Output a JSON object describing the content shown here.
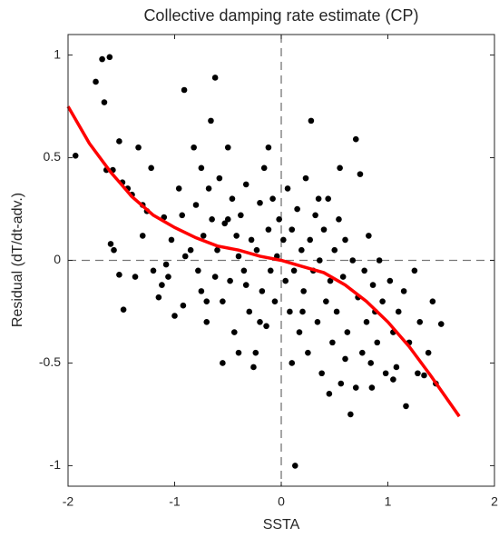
{
  "chart_data": {
    "type": "scatter",
    "title": "Collective damping rate estimate (CP)",
    "xlabel": "SSTA",
    "ylabel": "Residual (dT/dt-adv.)",
    "xlim": [
      -2,
      2
    ],
    "ylim": [
      -1.1,
      1.1
    ],
    "xticks": [
      -2,
      -1,
      0,
      1,
      2
    ],
    "yticks": [
      -1,
      -0.5,
      0,
      0.5,
      1
    ],
    "zero_lines": true,
    "box": true,
    "series": [
      {
        "type": "scatter",
        "color": "#000000",
        "x": [
          -1.93,
          -1.68,
          -1.61,
          -1.74,
          -1.66,
          -1.64,
          -1.58,
          -1.52,
          -1.49,
          -1.44,
          -1.4,
          -1.34,
          -1.3,
          -1.26,
          -1.22,
          -1.6,
          -1.57,
          -1.52,
          -1.48,
          -1.37,
          -1.3,
          -1.2,
          -1.15,
          -1.1,
          -1.08,
          -1.03,
          -1.0,
          -0.96,
          -0.91,
          -0.93,
          -0.92,
          -1.06,
          -1.12,
          -0.85,
          -0.82,
          -0.8,
          -0.78,
          -0.75,
          -0.73,
          -0.7,
          -0.68,
          -0.66,
          -0.62,
          -0.6,
          -0.58,
          -0.55,
          -0.53,
          -0.5,
          -0.48,
          -0.46,
          -0.44,
          -0.42,
          -0.4,
          -0.38,
          -0.35,
          -0.33,
          -0.3,
          -0.28,
          -0.26,
          -0.23,
          -0.2,
          -0.18,
          -0.16,
          -0.14,
          -0.12,
          -0.1,
          -0.08,
          -0.06,
          -0.04,
          -0.02,
          -0.55,
          -0.24,
          -0.75,
          -0.4,
          -0.62,
          -0.9,
          -0.2,
          -0.65,
          -0.33,
          -0.12,
          -0.5,
          -0.7,
          0.02,
          0.04,
          0.06,
          0.08,
          0.1,
          0.12,
          0.13,
          0.15,
          0.17,
          0.19,
          0.21,
          0.23,
          0.25,
          0.27,
          0.28,
          0.3,
          0.32,
          0.34,
          0.36,
          0.38,
          0.4,
          0.42,
          0.44,
          0.46,
          0.48,
          0.5,
          0.52,
          0.54,
          0.56,
          0.58,
          0.6,
          0.62,
          0.65,
          0.67,
          0.7,
          0.72,
          0.74,
          0.76,
          0.78,
          0.8,
          0.82,
          0.84,
          0.86,
          0.88,
          0.9,
          0.92,
          0.95,
          0.98,
          0.1,
          0.45,
          0.6,
          0.35,
          0.55,
          0.2,
          0.7,
          0.85,
          1.02,
          1.05,
          1.08,
          1.1,
          1.15,
          1.17,
          1.2,
          1.25,
          1.28,
          1.3,
          1.34,
          1.38,
          1.42,
          1.5,
          1.45,
          1.05
        ],
        "y": [
          0.51,
          0.98,
          0.99,
          0.87,
          0.77,
          0.44,
          0.44,
          0.58,
          0.38,
          0.35,
          0.32,
          0.55,
          0.27,
          0.24,
          0.45,
          0.08,
          0.05,
          -0.07,
          -0.24,
          -0.08,
          0.12,
          -0.05,
          -0.18,
          0.21,
          -0.02,
          0.1,
          -0.27,
          0.35,
          0.83,
          0.22,
          -0.22,
          -0.08,
          -0.12,
          0.05,
          0.55,
          0.27,
          -0.05,
          -0.15,
          0.12,
          -0.3,
          0.35,
          0.68,
          0.89,
          0.05,
          0.4,
          -0.2,
          0.18,
          0.55,
          -0.1,
          0.3,
          -0.35,
          0.12,
          -0.45,
          0.22,
          -0.05,
          0.37,
          -0.25,
          0.1,
          -0.52,
          0.05,
          0.28,
          -0.15,
          0.45,
          -0.32,
          0.15,
          -0.05,
          0.3,
          -0.2,
          0.02,
          0.2,
          -0.5,
          -0.45,
          0.45,
          0.02,
          -0.08,
          0.02,
          -0.3,
          0.2,
          -0.12,
          0.55,
          0.2,
          -0.2,
          0.1,
          -0.1,
          0.35,
          -0.25,
          0.15,
          -0.05,
          -1.0,
          0.25,
          -0.35,
          0.05,
          -0.15,
          0.4,
          -0.45,
          0.1,
          0.68,
          -0.05,
          0.22,
          -0.3,
          0.0,
          -0.55,
          0.15,
          -0.2,
          0.3,
          -0.1,
          -0.4,
          0.05,
          -0.25,
          0.2,
          -0.6,
          -0.08,
          0.1,
          -0.35,
          -0.75,
          0.0,
          0.59,
          -0.18,
          0.42,
          -0.45,
          -0.05,
          -0.3,
          0.12,
          -0.5,
          -0.12,
          -0.25,
          -0.4,
          0.0,
          -0.2,
          -0.55,
          -0.5,
          -0.65,
          -0.48,
          0.3,
          0.45,
          -0.25,
          -0.62,
          -0.62,
          -0.1,
          -0.35,
          -0.52,
          -0.25,
          -0.15,
          -0.71,
          -0.4,
          -0.05,
          -0.55,
          -0.3,
          -0.56,
          -0.45,
          -0.2,
          -0.31,
          -0.6,
          -0.58
        ]
      },
      {
        "type": "line",
        "color": "#ff0000",
        "x": [
          -2,
          -1.8,
          -1.6,
          -1.4,
          -1.2,
          -1,
          -0.8,
          -0.6,
          -0.4,
          -0.2,
          0,
          0.2,
          0.4,
          0.6,
          0.8,
          1,
          1.2,
          1.4,
          1.67
        ],
        "y": [
          0.75,
          0.57,
          0.43,
          0.31,
          0.22,
          0.16,
          0.11,
          0.07,
          0.05,
          0.02,
          0,
          -0.03,
          -0.06,
          -0.12,
          -0.2,
          -0.3,
          -0.42,
          -0.56,
          -0.76
        ]
      }
    ]
  }
}
